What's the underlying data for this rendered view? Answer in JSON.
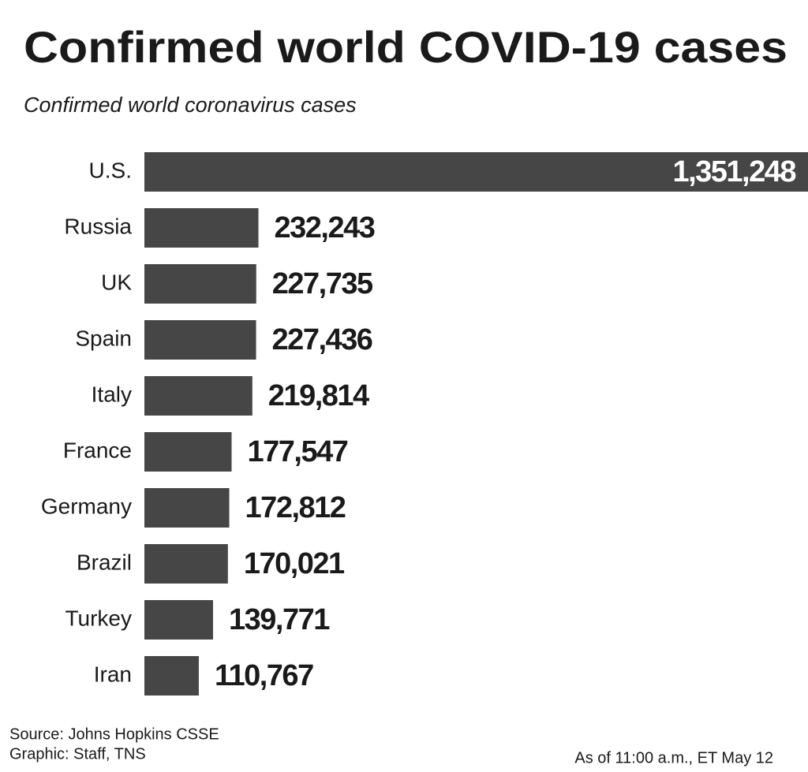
{
  "chart_data": {
    "type": "bar",
    "orientation": "horizontal",
    "title": "Confirmed world COVID-19 cases",
    "subtitle": "Confirmed world coronavirus cases",
    "categories": [
      "U.S.",
      "Russia",
      "UK",
      "Spain",
      "Italy",
      "France",
      "Germany",
      "Brazil",
      "Turkey",
      "Iran"
    ],
    "values": [
      1351248,
      232243,
      227735,
      227436,
      219814,
      177547,
      172812,
      170021,
      139771,
      110767
    ],
    "value_labels": [
      "1,351,248",
      "232,243",
      "227,735",
      "227,436",
      "219,814",
      "177,547",
      "172,812",
      "170,021",
      "139,771",
      "110,767"
    ],
    "color": "#464646",
    "source": "Source: Johns Hopkins CSSE",
    "credit": "Graphic: Staff, TNS",
    "note": "As of 11:00 a.m., ET May 12"
  }
}
